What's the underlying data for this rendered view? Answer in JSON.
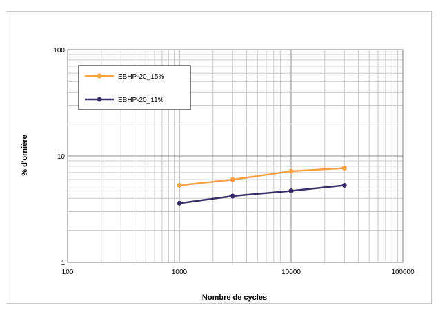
{
  "chart_data": {
    "type": "line",
    "xlabel": "Nombre de cycles",
    "ylabel": "% d'ornière",
    "x_scale": "log",
    "y_scale": "log",
    "xlim": [
      100,
      100000
    ],
    "ylim": [
      1,
      100
    ],
    "x_ticks": [
      "100",
      "1000",
      "10000",
      "100000"
    ],
    "y_ticks": [
      "1",
      "10",
      "100"
    ],
    "grid": true,
    "legend_position": "top-left",
    "series": [
      {
        "name": "EBHP-20_15%",
        "color": "#f5a146",
        "points": [
          [
            1000,
            5.3
          ],
          [
            3000,
            6.0
          ],
          [
            10000,
            7.2
          ],
          [
            30000,
            7.7
          ]
        ]
      },
      {
        "name": "EBHP-20_11%",
        "color": "#3b2f6b",
        "points": [
          [
            1000,
            3.6
          ],
          [
            3000,
            4.2
          ],
          [
            10000,
            4.7
          ],
          [
            30000,
            5.3
          ]
        ]
      }
    ]
  }
}
